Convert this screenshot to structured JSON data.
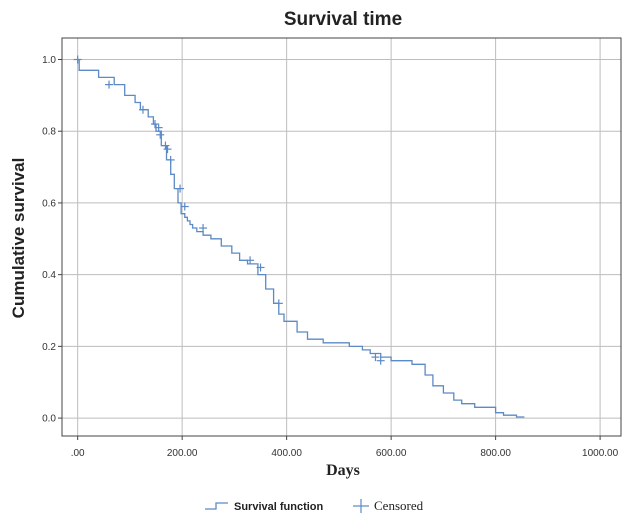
{
  "chart_data": {
    "type": "line",
    "title": "Survival time",
    "xlabel": "Days",
    "ylabel": "Cumulative survival",
    "xlim": [
      -30,
      1040
    ],
    "ylim": [
      -0.05,
      1.06
    ],
    "xticks": [
      0,
      200,
      400,
      600,
      800,
      1000
    ],
    "xtick_labels": [
      ".00",
      "200.00",
      "400.00",
      "600.00",
      "800.00",
      "1000.00"
    ],
    "yticks": [
      0.0,
      0.2,
      0.4,
      0.6,
      0.8,
      1.0
    ],
    "ytick_labels": [
      "0.0",
      "0.2",
      "0.4",
      "0.6",
      "0.8",
      "1.0"
    ],
    "grid": true,
    "legend_position": "bottom-center",
    "line_color": "#5b8ac6",
    "series": [
      {
        "name": "Survival function",
        "step": true,
        "x": [
          0,
          3,
          40,
          70,
          90,
          110,
          120,
          135,
          145,
          150,
          160,
          170,
          178,
          185,
          192,
          198,
          205,
          210,
          215,
          220,
          228,
          240,
          255,
          275,
          295,
          310,
          325,
          345,
          360,
          375,
          385,
          395,
          420,
          440,
          470,
          520,
          545,
          560,
          580,
          600,
          640,
          665,
          680,
          700,
          720,
          735,
          760,
          800,
          815,
          840,
          855
        ],
        "y": [
          1.0,
          0.97,
          0.95,
          0.93,
          0.9,
          0.88,
          0.86,
          0.84,
          0.82,
          0.8,
          0.76,
          0.72,
          0.68,
          0.64,
          0.6,
          0.57,
          0.56,
          0.55,
          0.54,
          0.53,
          0.52,
          0.51,
          0.5,
          0.48,
          0.46,
          0.44,
          0.43,
          0.4,
          0.36,
          0.32,
          0.29,
          0.27,
          0.24,
          0.22,
          0.21,
          0.2,
          0.19,
          0.18,
          0.17,
          0.16,
          0.15,
          0.12,
          0.09,
          0.07,
          0.05,
          0.04,
          0.03,
          0.015,
          0.008,
          0.003,
          0.003
        ]
      }
    ],
    "censored": {
      "name": "Censored",
      "x": [
        0,
        60,
        125,
        148,
        155,
        158,
        168,
        172,
        178,
        196,
        205,
        240,
        330,
        350,
        385,
        570,
        580
      ],
      "y": [
        1.0,
        0.93,
        0.86,
        0.82,
        0.81,
        0.79,
        0.76,
        0.75,
        0.72,
        0.64,
        0.59,
        0.53,
        0.44,
        0.42,
        0.32,
        0.17,
        0.16
      ]
    }
  }
}
